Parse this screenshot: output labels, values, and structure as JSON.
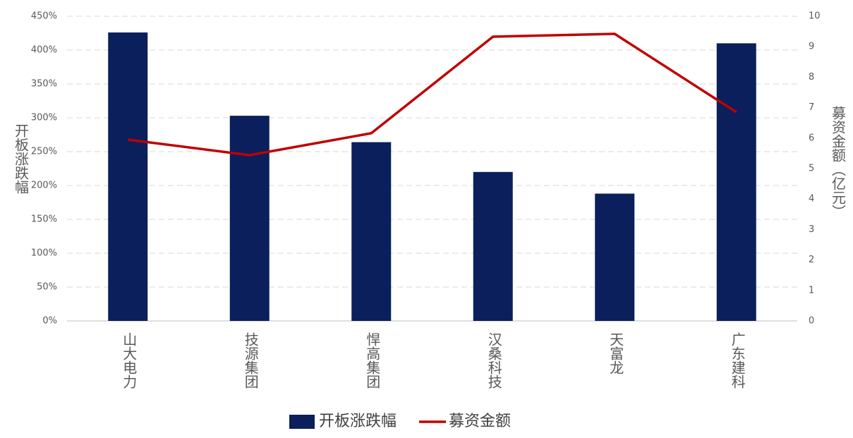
{
  "chart_data": {
    "type": "bar",
    "categories": [
      "山大电力",
      "技源集团",
      "悍高集团",
      "汉桑科技",
      "天富龙",
      "广东建科"
    ],
    "series": [
      {
        "name": "开板涨跌幅",
        "type": "bar",
        "color": "#0b1f5c",
        "values": [
          426,
          303,
          264,
          220,
          188,
          410
        ]
      },
      {
        "name": "募资金额",
        "type": "line",
        "axis": "y2",
        "color": "#c00000",
        "values": [
          5.95,
          5.44,
          6.16,
          9.33,
          9.42,
          6.85
        ]
      }
    ],
    "y_label": "开板涨跌幅",
    "y2_label": "募资金额（亿元）",
    "ylim": [
      0,
      450
    ],
    "yticks": [
      {
        "value": 0,
        "label": "0%"
      },
      {
        "value": 50,
        "label": "50%"
      },
      {
        "value": 100,
        "label": "100%"
      },
      {
        "value": 150,
        "label": "150%"
      },
      {
        "value": 200,
        "label": "200%"
      },
      {
        "value": 250,
        "label": "250%"
      },
      {
        "value": 300,
        "label": "300%"
      },
      {
        "value": 350,
        "label": "350%"
      },
      {
        "value": 400,
        "label": "400%"
      },
      {
        "value": 450,
        "label": "450%"
      }
    ],
    "y2lim": [
      0,
      10
    ],
    "y2ticks": [
      0,
      1,
      2,
      3,
      4,
      5,
      6,
      7,
      8,
      9,
      10
    ],
    "grid": true,
    "legend": "bottom"
  }
}
